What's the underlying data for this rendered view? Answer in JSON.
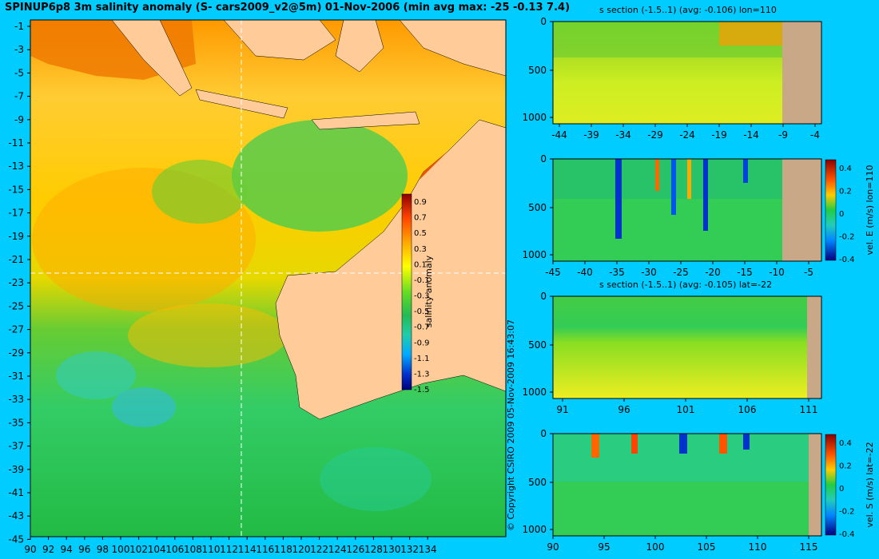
{
  "title": "SPINUP6p8 3m salinity anomaly (S- cars2009_v2@5m) 01-Nov-2006 (min avg max: -25 -0.13 7.4)",
  "map": {
    "lat_labels": [
      "-1",
      "-3",
      "-5",
      "-7",
      "-9",
      "-11",
      "-13",
      "-15",
      "-17",
      "-19",
      "-21",
      "-23",
      "-25",
      "-27",
      "-29",
      "-31",
      "-33",
      "-35",
      "-37",
      "-39",
      "-41",
      "-43",
      "-45"
    ],
    "lon_labels": [
      "90",
      "92",
      "94",
      "96",
      "98",
      "100",
      "102",
      "104",
      "106",
      "108",
      "110",
      "112",
      "114",
      "116",
      "118",
      "120",
      "122",
      "124",
      "126",
      "128",
      "130",
      "132",
      "134"
    ],
    "crosshair": {
      "lon": 110,
      "lat": -22
    },
    "colorbar": {
      "label": "salinity anomaly",
      "ticks": [
        "0.9",
        "0.7",
        "0.5",
        "0.3",
        "0.1",
        "-0.1",
        "-0.3",
        "-0.5",
        "-0.7",
        "-0.9",
        "-1.1",
        "-1.3",
        "-1.5"
      ]
    }
  },
  "copyright": "© Copyright CSIRO 2009   05-Nov-2009 16:43:07",
  "sections": [
    {
      "title": "s section (-1.5..1) (avg: -0.106) lon=110",
      "y_ticks": [
        "0",
        "500",
        "1000"
      ],
      "x_ticks": [
        "-44",
        "-39",
        "-34",
        "-29",
        "-24",
        "-19",
        "-14",
        "-9",
        "-4"
      ],
      "colorbar": null
    },
    {
      "title": "",
      "y_ticks": [
        "0",
        "500",
        "1000"
      ],
      "x_ticks": [
        "-45",
        "-40",
        "-35",
        "-30",
        "-25",
        "-20",
        "-15",
        "-10",
        "-5"
      ],
      "colorbar": {
        "label": "vel. E (m/s) lon=110",
        "ticks": [
          "0.4",
          "0.2",
          "0",
          "-0.2",
          "-0.4"
        ]
      }
    },
    {
      "title": "s section (-1.5..1) (avg: -0.105) lat=-22",
      "y_ticks": [
        "0",
        "500",
        "1000"
      ],
      "x_ticks": [
        "91",
        "96",
        "101",
        "106",
        "111"
      ],
      "colorbar": null
    },
    {
      "title": "",
      "y_ticks": [
        "0",
        "500",
        "1000"
      ],
      "x_ticks": [
        "90",
        "95",
        "100",
        "105",
        "110",
        "115"
      ],
      "colorbar": {
        "label": "vel. S (m/s) lat=-22",
        "ticks": [
          "0.4",
          "0.2",
          "0",
          "-0.2",
          "-0.4"
        ]
      }
    }
  ]
}
